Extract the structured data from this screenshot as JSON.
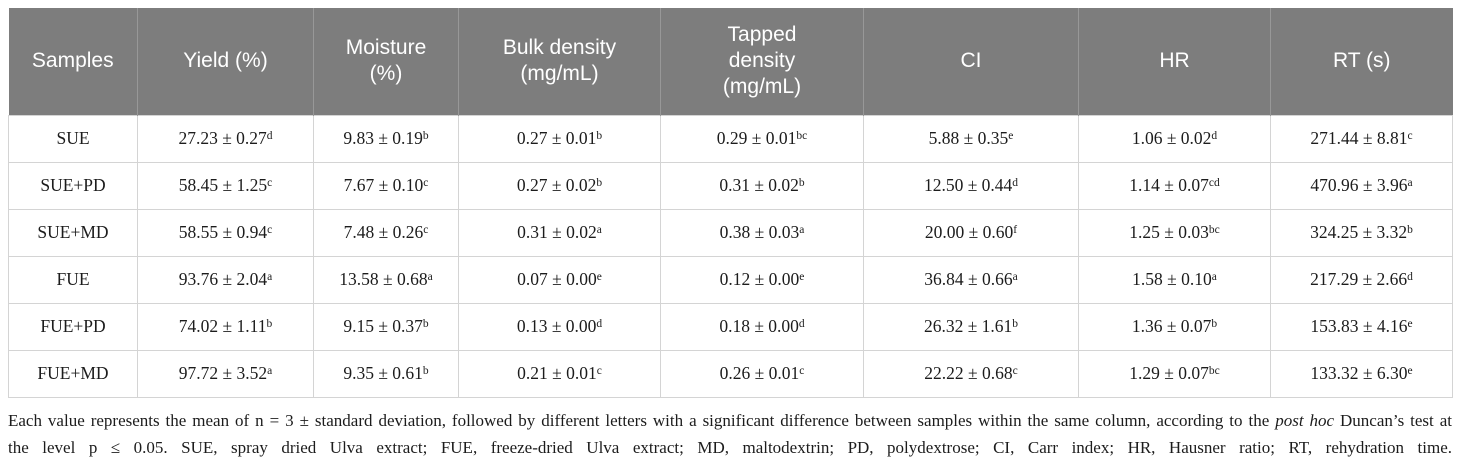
{
  "table": {
    "columns": [
      {
        "id": "samples",
        "label": "Samples",
        "lines": [
          "Samples"
        ]
      },
      {
        "id": "yield",
        "label": "Yield (%)",
        "lines": [
          "Yield (%)"
        ]
      },
      {
        "id": "moisture",
        "label": "Moisture (%)",
        "lines": [
          "Moisture",
          "(%)"
        ]
      },
      {
        "id": "bulk-density",
        "label": "Bulk density (mg/mL)",
        "lines": [
          "Bulk density",
          "(mg/mL)"
        ]
      },
      {
        "id": "tapped-density",
        "label": "Tapped density (mg/mL)",
        "lines": [
          "Tapped",
          "density",
          "(mg/mL)"
        ]
      },
      {
        "id": "ci",
        "label": "CI",
        "lines": [
          "CI"
        ]
      },
      {
        "id": "hr",
        "label": "HR",
        "lines": [
          "HR"
        ]
      },
      {
        "id": "rt",
        "label": "RT (s)",
        "lines": [
          "RT (s)"
        ]
      }
    ],
    "rows": [
      {
        "sample": "SUE",
        "values": [
          {
            "text": "27.23 ± 0.27",
            "sup": "d"
          },
          {
            "text": "9.83 ± 0.19",
            "sup": "b"
          },
          {
            "text": "0.27 ± 0.01",
            "sup": "b"
          },
          {
            "text": "0.29 ± 0.01",
            "sup": "bc"
          },
          {
            "text": "5.88 ± 0.35",
            "sup": "e"
          },
          {
            "text": "1.06 ± 0.02",
            "sup": "d"
          },
          {
            "text": "271.44 ± 8.81",
            "sup": "c"
          }
        ]
      },
      {
        "sample": "SUE+PD",
        "values": [
          {
            "text": "58.45 ± 1.25",
            "sup": "c"
          },
          {
            "text": "7.67 ± 0.10",
            "sup": "c"
          },
          {
            "text": "0.27 ± 0.02",
            "sup": "b"
          },
          {
            "text": "0.31 ± 0.02",
            "sup": "b"
          },
          {
            "text": "12.50 ± 0.44",
            "sup": "d"
          },
          {
            "text": "1.14 ± 0.07",
            "sup": "cd"
          },
          {
            "text": "470.96 ± 3.96",
            "sup": "a"
          }
        ]
      },
      {
        "sample": "SUE+MD",
        "values": [
          {
            "text": "58.55 ± 0.94",
            "sup": "c"
          },
          {
            "text": "7.48 ± 0.26",
            "sup": "c"
          },
          {
            "text": "0.31 ± 0.02",
            "sup": "a"
          },
          {
            "text": "0.38 ± 0.03",
            "sup": "a"
          },
          {
            "text": "20.00 ± 0.60",
            "sup": "f"
          },
          {
            "text": "1.25 ± 0.03",
            "sup": "bc"
          },
          {
            "text": "324.25 ± 3.32",
            "sup": "b"
          }
        ]
      },
      {
        "sample": "FUE",
        "values": [
          {
            "text": "93.76 ± 2.04",
            "sup": "a"
          },
          {
            "text": "13.58 ± 0.68",
            "sup": "a"
          },
          {
            "text": "0.07 ± 0.00",
            "sup": "e"
          },
          {
            "text": "0.12 ± 0.00",
            "sup": "e"
          },
          {
            "text": "36.84 ± 0.66",
            "sup": "a"
          },
          {
            "text": "1.58 ± 0.10",
            "sup": "a"
          },
          {
            "text": "217.29 ± 2.66",
            "sup": "d"
          }
        ]
      },
      {
        "sample": "FUE+PD",
        "values": [
          {
            "text": "74.02 ± 1.11",
            "sup": "b"
          },
          {
            "text": "9.15 ± 0.37",
            "sup": "b"
          },
          {
            "text": "0.13 ± 0.00",
            "sup": "d"
          },
          {
            "text": "0.18 ± 0.00",
            "sup": "d"
          },
          {
            "text": "26.32 ± 1.61",
            "sup": "b"
          },
          {
            "text": "1.36 ± 0.07",
            "sup": "b"
          },
          {
            "text": "153.83 ± 4.16",
            "sup": "e"
          }
        ]
      },
      {
        "sample": "FUE+MD",
        "values": [
          {
            "text": "97.72 ± 3.52",
            "sup": "a"
          },
          {
            "text": "9.35 ± 0.61",
            "sup": "b"
          },
          {
            "text": "0.21 ± 0.01",
            "sup": "c"
          },
          {
            "text": "0.26 ± 0.01",
            "sup": "c"
          },
          {
            "text": "22.22 ± 0.68",
            "sup": "c"
          },
          {
            "text": "1.29 ± 0.07",
            "sup": "bc"
          },
          {
            "text": "133.32 ± 6.30",
            "sup": "e"
          }
        ]
      }
    ]
  },
  "footnote": {
    "part1": "Each value represents the mean of n = 3 ± standard deviation, followed by different letters with a significant difference between samples within the same column, according to the ",
    "italic": "post hoc",
    "part2": " Duncan’s test at the level p ≤ 0.05. SUE, spray dried Ulva extract; FUE, freeze-dried Ulva extract; MD, maltodextrin; PD, polydextrose; CI, Carr index; HR, Hausner ratio; RT, rehydration time."
  },
  "colors": {
    "header_bg": "#7d7d7d",
    "header_text": "#ffffff",
    "header_divider": "#989898",
    "cell_border": "#d4d4d4",
    "body_text": "#1c1c1c"
  }
}
